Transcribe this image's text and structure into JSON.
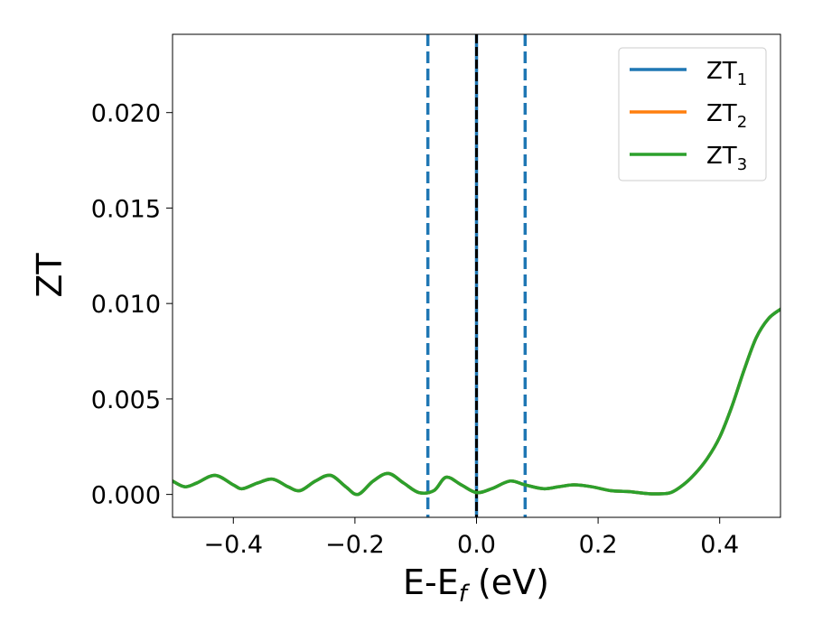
{
  "chart_data": {
    "type": "line",
    "xlabel": "E-E",
    "xlabel_sub": "f",
    "xlabel_unit": " (eV)",
    "ylabel": "ZT",
    "xlim": [
      -0.5,
      0.5
    ],
    "ylim": [
      -0.0012,
      0.0241
    ],
    "xticks": [
      -0.4,
      -0.2,
      0.0,
      0.2,
      0.4
    ],
    "xtick_labels": [
      "−0.4",
      "−0.2",
      "0.0",
      "0.2",
      "0.4"
    ],
    "yticks": [
      0.0,
      0.005,
      0.01,
      0.015,
      0.02
    ],
    "ytick_labels": [
      "0.000",
      "0.005",
      "0.010",
      "0.015",
      "0.020"
    ],
    "grid": false,
    "legend_position": "top-right",
    "vlines": [
      {
        "x": -0.08,
        "style": "dashed",
        "color": "#1f77b4"
      },
      {
        "x": 0.0,
        "style": "solid",
        "color": "#1f77b4"
      },
      {
        "x": 0.0,
        "style": "dashed",
        "color": "#000000"
      },
      {
        "x": 0.08,
        "style": "dashed",
        "color": "#1f77b4"
      }
    ],
    "series": [
      {
        "name": "ZT",
        "sub": "1",
        "color": "#1f77b4"
      },
      {
        "name": "ZT",
        "sub": "2",
        "color": "#ff7f0e"
      },
      {
        "name": "ZT",
        "sub": "3",
        "color": "#2ca02c"
      }
    ],
    "x": [
      -0.5,
      -0.48,
      -0.46,
      -0.43,
      -0.4,
      -0.385,
      -0.36,
      -0.335,
      -0.31,
      -0.29,
      -0.265,
      -0.24,
      -0.215,
      -0.195,
      -0.17,
      -0.145,
      -0.12,
      -0.095,
      -0.07,
      -0.05,
      -0.025,
      0.0,
      0.025,
      0.055,
      0.08,
      0.11,
      0.135,
      0.16,
      0.19,
      0.22,
      0.25,
      0.28,
      0.3,
      0.32,
      0.34,
      0.36,
      0.38,
      0.4,
      0.42,
      0.44,
      0.46,
      0.48,
      0.5
    ],
    "y": [
      0.0007,
      0.0004,
      0.0006,
      0.001,
      0.0005,
      0.0003,
      0.0006,
      0.0008,
      0.0004,
      0.0002,
      0.0007,
      0.001,
      0.0004,
      0.0,
      0.0007,
      0.0011,
      0.0006,
      0.0001,
      0.0002,
      0.0009,
      0.0005,
      0.0001,
      0.0003,
      0.0007,
      0.0005,
      0.0003,
      0.0004,
      0.0005,
      0.0004,
      0.0002,
      0.00015,
      5e-05,
      3e-05,
      0.0001,
      0.0005,
      0.0011,
      0.0019,
      0.003,
      0.0046,
      0.0065,
      0.0082,
      0.0092,
      0.0097
    ]
  }
}
